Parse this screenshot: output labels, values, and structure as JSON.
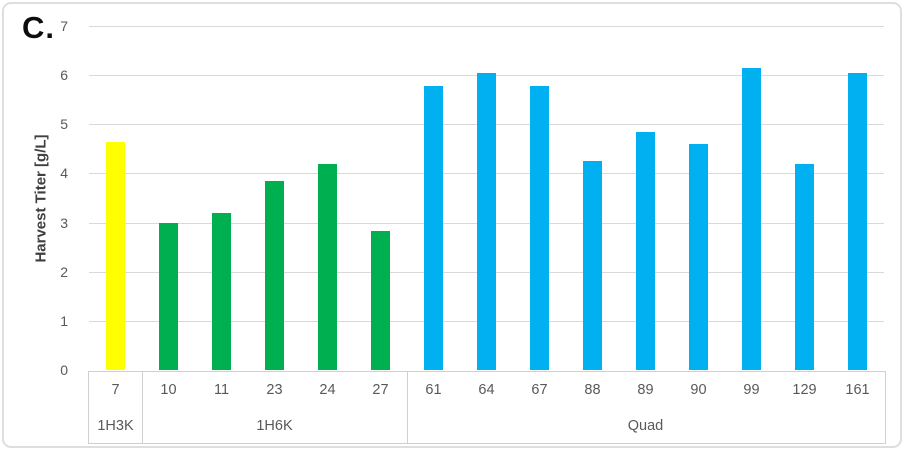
{
  "panel_label": "C.",
  "chart_data": {
    "type": "bar",
    "title": "",
    "xlabel": "",
    "ylabel": "Harvest Titer [g/L]",
    "ylim": [
      0,
      7
    ],
    "yticks": [
      0,
      1,
      2,
      3,
      4,
      5,
      6,
      7
    ],
    "grid": true,
    "legend": "none",
    "groups": [
      {
        "label": "1H3K",
        "color": "#FFFF00",
        "categories": [
          "7"
        ],
        "values": [
          4.65
        ]
      },
      {
        "label": "1H6K",
        "color": "#00B050",
        "categories": [
          "10",
          "11",
          "23",
          "24",
          "27"
        ],
        "values": [
          3.0,
          3.2,
          3.85,
          4.2,
          2.82
        ]
      },
      {
        "label": "Quad",
        "color": "#00B0F0",
        "categories": [
          "61",
          "64",
          "67",
          "88",
          "89",
          "90",
          "99",
          "129",
          "161"
        ],
        "values": [
          5.78,
          6.05,
          5.78,
          4.25,
          4.85,
          4.6,
          6.15,
          4.2,
          6.05
        ]
      }
    ],
    "styles": {
      "grid_color": "#d9d9d9",
      "axis_text_color": "#595959",
      "axis_title_color": "#3f3f3f",
      "table_border_color": "#d0d0d0"
    }
  }
}
